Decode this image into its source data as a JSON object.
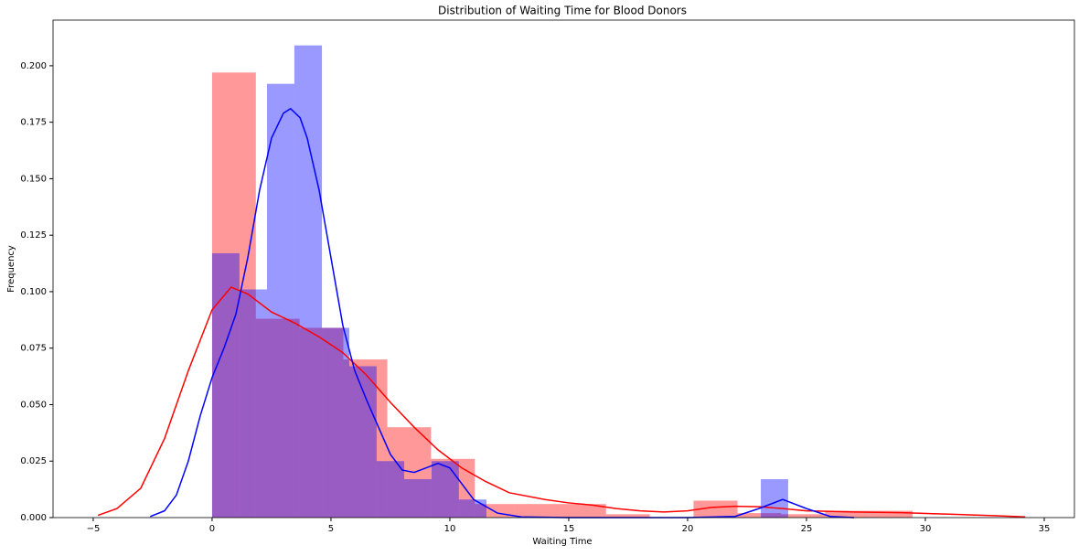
{
  "chart_data": {
    "type": "histogram",
    "title": "Distribution of Waiting Time for Blood Donors",
    "xlabel": "Waiting Time",
    "ylabel": "Frequency",
    "xlim": [
      -6.69,
      36.27
    ],
    "ylim": [
      0,
      0.2202
    ],
    "xticks": [
      {
        "value": -5,
        "label": "−5"
      },
      0,
      5,
      10,
      15,
      20,
      25,
      30,
      35
    ],
    "yticks": [
      {
        "value": 0,
        "label": "0.000"
      },
      {
        "value": 0.025,
        "label": "0.025"
      },
      {
        "value": 0.05,
        "label": "0.050"
      },
      {
        "value": 0.075,
        "label": "0.075"
      },
      {
        "value": 0.1,
        "label": "0.100"
      },
      {
        "value": 0.125,
        "label": "0.125"
      },
      {
        "value": 0.15,
        "label": "0.150"
      },
      {
        "value": 0.175,
        "label": "0.175"
      },
      {
        "value": 0.2,
        "label": "0.200"
      }
    ],
    "histograms": [
      {
        "color": "#ff0000",
        "opacity": 0.4,
        "bins": [
          0,
          1.84,
          3.68,
          5.52,
          7.37,
          9.21,
          11.05,
          12.89,
          14.73,
          16.57,
          18.41,
          20.25,
          22.1,
          23.94,
          25.78,
          27.62,
          29.46
        ],
        "counts": [
          0.197,
          0.088,
          0.084,
          0.07,
          0.04,
          0.026,
          0.006,
          0.006,
          0.006,
          0.0015,
          0,
          0.0075,
          0.002,
          0.0015,
          0.003,
          0.003
        ]
      },
      {
        "color": "#0000ff",
        "opacity": 0.4,
        "bins": [
          0,
          1.15,
          2.31,
          3.46,
          4.62,
          5.77,
          6.92,
          8.08,
          9.23,
          10.38,
          11.54,
          12.69,
          13.85,
          15.0,
          16.15,
          17.31,
          18.46,
          19.62,
          20.77,
          21.92,
          23.08,
          24.23
        ],
        "counts": [
          0.117,
          0.101,
          0.192,
          0.209,
          0.084,
          0.067,
          0.025,
          0.017,
          0.025,
          0.008,
          0,
          0,
          0,
          0,
          0,
          0,
          0,
          0,
          0,
          0,
          0.017
        ]
      }
    ],
    "kde": [
      {
        "color": "#ff0000",
        "x": [
          -4.8,
          -4,
          -3,
          -2,
          -1,
          0,
          0.8,
          1.5,
          2.5,
          3.5,
          4.5,
          5.5,
          6.5,
          7.5,
          8.5,
          9.5,
          10.5,
          11.5,
          12.5,
          14,
          15,
          16,
          17,
          18,
          19,
          20,
          21,
          22,
          23,
          24,
          25,
          27,
          29,
          31,
          33,
          34.2
        ],
        "values": [
          0.001,
          0.004,
          0.013,
          0.035,
          0.065,
          0.092,
          0.102,
          0.099,
          0.091,
          0.086,
          0.08,
          0.073,
          0.063,
          0.051,
          0.04,
          0.03,
          0.022,
          0.016,
          0.011,
          0.008,
          0.0065,
          0.0055,
          0.004,
          0.003,
          0.0025,
          0.003,
          0.0045,
          0.005,
          0.0048,
          0.004,
          0.003,
          0.0025,
          0.0022,
          0.0015,
          0.0008,
          0.0003
        ]
      },
      {
        "color": "#0000ff",
        "x": [
          -2.6,
          -2,
          -1.5,
          -1,
          -0.5,
          0,
          0.5,
          1,
          1.5,
          2,
          2.5,
          3,
          3.3,
          3.7,
          4,
          4.5,
          5,
          5.5,
          6,
          6.5,
          7,
          7.5,
          8,
          8.5,
          9,
          9.5,
          10,
          10.5,
          11,
          12,
          13,
          15,
          20,
          22,
          23,
          24,
          25,
          26,
          27
        ],
        "values": [
          0.0005,
          0.003,
          0.01,
          0.025,
          0.045,
          0.062,
          0.075,
          0.09,
          0.115,
          0.145,
          0.168,
          0.179,
          0.181,
          0.177,
          0.168,
          0.145,
          0.115,
          0.085,
          0.065,
          0.052,
          0.04,
          0.028,
          0.021,
          0.02,
          0.022,
          0.024,
          0.022,
          0.015,
          0.008,
          0.002,
          0.0003,
          0,
          0,
          0.0005,
          0.004,
          0.008,
          0.004,
          0.0005,
          0
        ]
      }
    ]
  }
}
